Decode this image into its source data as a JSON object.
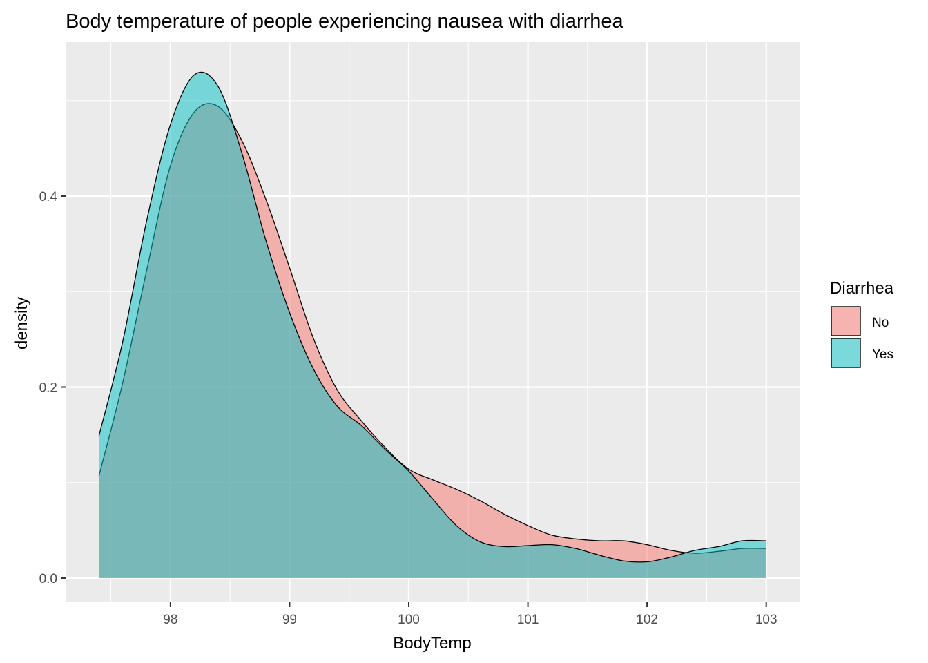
{
  "chart_data": {
    "type": "area",
    "title": "Body temperature of people experiencing nausea with diarrhea",
    "xlabel": "BodyTemp",
    "ylabel": "density",
    "xlim": [
      97.4,
      103.0
    ],
    "ylim": [
      0.0,
      0.53
    ],
    "x_ticks": [
      98,
      99,
      100,
      101,
      102,
      103
    ],
    "x_tick_labels": [
      "98",
      "99",
      "100",
      "101",
      "102",
      "103"
    ],
    "y_ticks": [
      0.0,
      0.2,
      0.4
    ],
    "y_tick_labels": [
      "0.0",
      "0.2",
      "0.4"
    ],
    "grid": true,
    "legend": {
      "title": "Diarrhea",
      "placement": "right"
    },
    "x": [
      97.4,
      97.6,
      97.8,
      98.0,
      98.2,
      98.4,
      98.6,
      98.8,
      99.0,
      99.2,
      99.4,
      99.6,
      99.8,
      100.0,
      100.2,
      100.4,
      100.6,
      100.8,
      101.0,
      101.2,
      101.4,
      101.6,
      101.8,
      102.0,
      102.2,
      102.4,
      102.6,
      102.8,
      103.0
    ],
    "series": [
      {
        "name": "No",
        "color": "#F8766D",
        "values": [
          0.107,
          0.205,
          0.322,
          0.432,
          0.488,
          0.494,
          0.458,
          0.397,
          0.325,
          0.251,
          0.197,
          0.165,
          0.137,
          0.114,
          0.103,
          0.093,
          0.081,
          0.067,
          0.055,
          0.045,
          0.041,
          0.039,
          0.039,
          0.035,
          0.029,
          0.026,
          0.028,
          0.031,
          0.031
        ]
      },
      {
        "name": "Yes",
        "color": "#00BFC4",
        "values": [
          0.149,
          0.248,
          0.374,
          0.475,
          0.527,
          0.515,
          0.445,
          0.354,
          0.278,
          0.219,
          0.18,
          0.16,
          0.135,
          0.112,
          0.083,
          0.055,
          0.038,
          0.033,
          0.034,
          0.035,
          0.031,
          0.024,
          0.018,
          0.017,
          0.022,
          0.029,
          0.033,
          0.039,
          0.039
        ]
      }
    ]
  }
}
